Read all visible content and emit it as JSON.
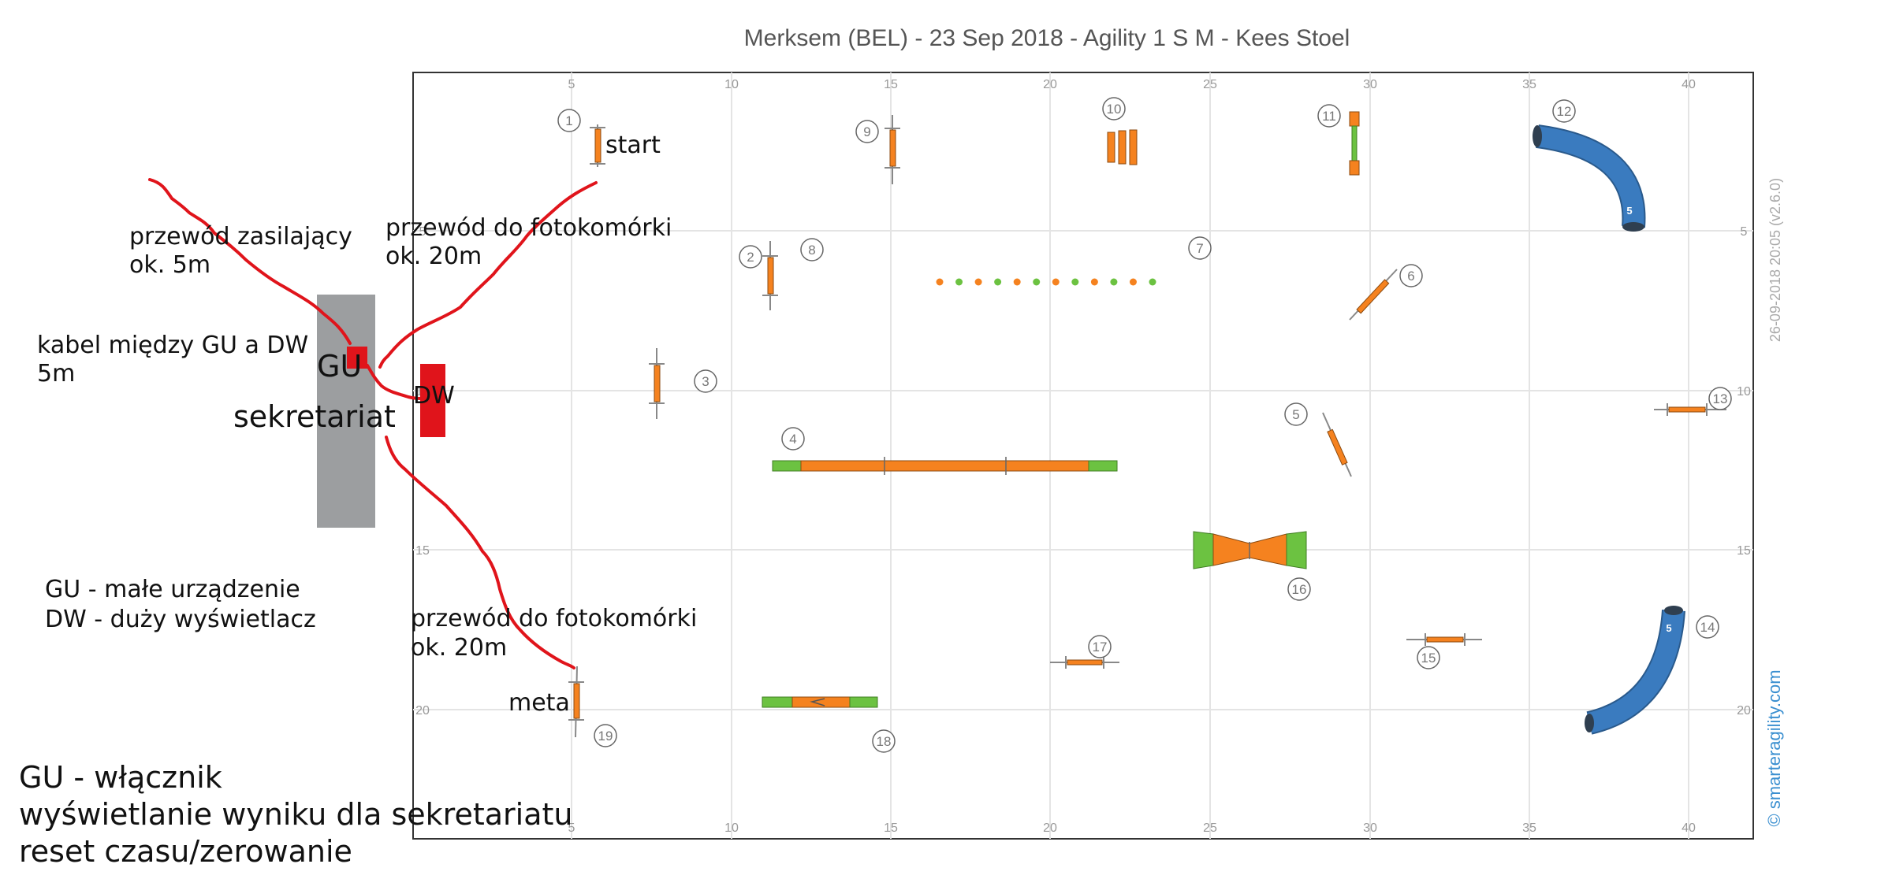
{
  "header": {
    "title": "Merksem (BEL) - 23 Sep 2018 - Agility 1 S M - Kees Stoel",
    "version_stamp": "26-09-2018 20:05  (v2.6.0)",
    "credit": "© smarteragility.com"
  },
  "axes": {
    "x_ticks": [
      "5",
      "10",
      "15",
      "20",
      "25",
      "30",
      "35",
      "40"
    ],
    "y_ticks": [
      "5",
      "10",
      "15",
      "20"
    ]
  },
  "obstacle_numbers": [
    "1",
    "2",
    "3",
    "4",
    "5",
    "6",
    "7",
    "8",
    "9",
    "10",
    "11",
    "12",
    "13",
    "14",
    "15",
    "16",
    "17",
    "18",
    "19"
  ],
  "tunnel_labels": [
    "5",
    "5"
  ],
  "annotations": {
    "start": "start",
    "meta": "meta",
    "zasilajacy_l1": "przewód zasilający",
    "zasilajacy_l2": "ok. 5m",
    "foto1_l1": "przewód do fotokomórki",
    "foto1_l2": "ok. 20m",
    "foto2_l1": "przewód do fotokomórki",
    "foto2_l2": "ok. 20m",
    "kabel_l1": "kabel między GU a DW",
    "kabel_l2": "5m",
    "gu": "GU",
    "sekretariat": "sekretariat",
    "dw": "DW",
    "legend_l1": "GU - małe urządzenie",
    "legend_l2": "DW - duży wyświetlacz",
    "notes_l1": "GU - włącznik",
    "notes_l2": "wyświetlanie wyniku dla sekretariatu",
    "notes_l3": "reset czasu/zerowanie"
  },
  "colors": {
    "obstacle": "#f5821f",
    "contact": "#6cc241",
    "tunnel": "#3a7bbf",
    "cable": "#e0141b",
    "device": "#e0141b",
    "desk": "#9c9ea0"
  }
}
